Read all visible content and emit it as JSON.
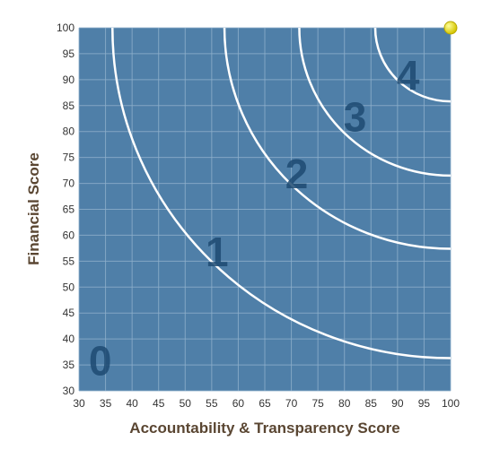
{
  "chart_data": {
    "type": "scatter",
    "xlabel": "Accountability & Transparency Score",
    "ylabel": "Financial Score",
    "xlim": [
      30,
      100
    ],
    "ylim": [
      30,
      100
    ],
    "x_ticks": [
      30,
      35,
      40,
      45,
      50,
      55,
      60,
      65,
      70,
      75,
      80,
      85,
      90,
      95,
      100
    ],
    "y_ticks": [
      30,
      35,
      40,
      45,
      50,
      55,
      60,
      65,
      70,
      75,
      80,
      85,
      90,
      95,
      100
    ],
    "grid": true,
    "background_color": "#4f7fa8",
    "grid_color": "#8fb0cc",
    "arc_color": "#ffffff",
    "zone_label_color": "#1e4b72",
    "point_color": "#f2e600",
    "zone_boundaries": [
      {
        "radius": 63.7
      },
      {
        "radius": 42.6
      },
      {
        "radius": 28.5
      },
      {
        "radius": 14.2
      }
    ],
    "zones": [
      {
        "label": "0",
        "x": 34,
        "y": 36
      },
      {
        "label": "1",
        "x": 56,
        "y": 57
      },
      {
        "label": "2",
        "x": 71,
        "y": 72
      },
      {
        "label": "3",
        "x": 82,
        "y": 83
      },
      {
        "label": "4",
        "x": 92,
        "y": 91
      }
    ],
    "points": [
      {
        "x": 100,
        "y": 100
      }
    ]
  }
}
